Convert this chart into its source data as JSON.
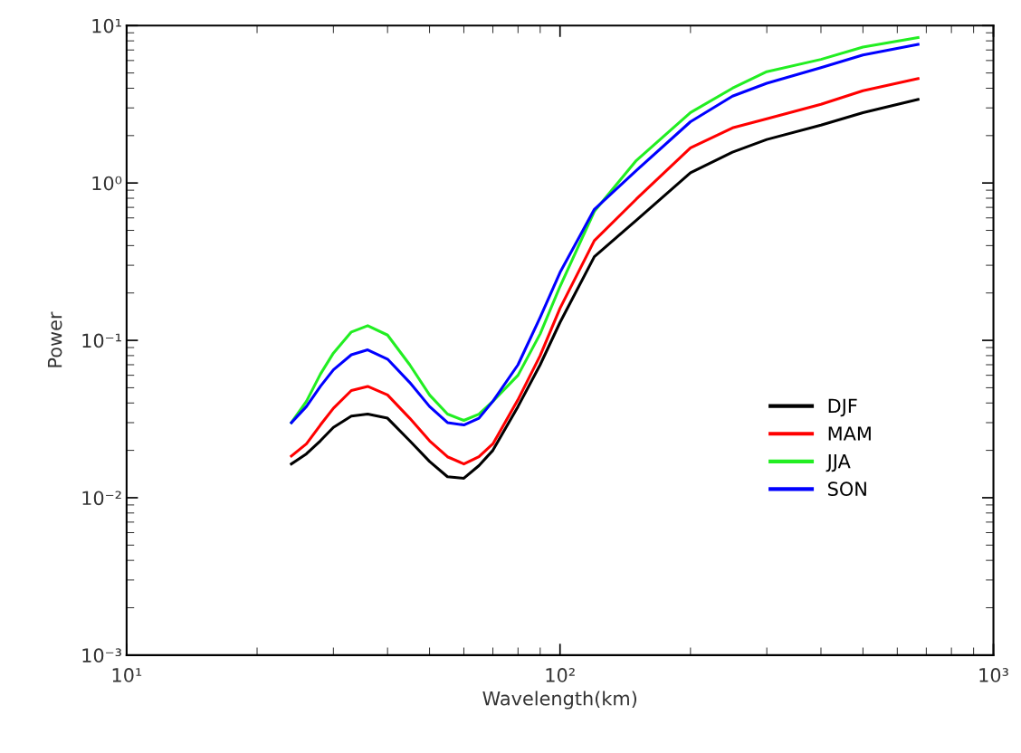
{
  "chart_data": {
    "type": "line",
    "xlabel": "Wavelength(km)",
    "ylabel": "Power",
    "log": "xy",
    "grid": false,
    "legend": "bottom right",
    "marker": "none",
    "line_style": "solid",
    "xlim": [
      10,
      1000
    ],
    "xticks": [
      {
        "value": 10,
        "label": "10¹"
      },
      {
        "value": 100,
        "label": "10²"
      },
      {
        "value": 1000,
        "label": "10³"
      }
    ],
    "ylim": [
      0.001,
      10
    ],
    "yticks": [
      {
        "value": 0.001,
        "label": "10⁻³"
      },
      {
        "value": 0.01,
        "label": "10⁻²"
      },
      {
        "value": 0.1,
        "label": "10⁻¹"
      },
      {
        "value": 1,
        "label": "10⁰"
      },
      {
        "value": 10,
        "label": "10¹"
      }
    ],
    "x": [
      24,
      26,
      28,
      30,
      33,
      36,
      40,
      45,
      50,
      55,
      60,
      65,
      70,
      80,
      90,
      100,
      120,
      150,
      200,
      250,
      300,
      400,
      500,
      670
    ],
    "series": [
      {
        "name": "DJF",
        "color": "#000000",
        "values": [
          0.0164,
          0.019,
          0.023,
          0.028,
          0.033,
          0.034,
          0.032,
          0.023,
          0.017,
          0.0136,
          0.0133,
          0.016,
          0.02,
          0.038,
          0.07,
          0.13,
          0.34,
          0.58,
          1.16,
          1.57,
          1.89,
          2.33,
          2.8,
          3.4
        ]
      },
      {
        "name": "MAM",
        "color": "#ff0000",
        "values": [
          0.0184,
          0.022,
          0.029,
          0.037,
          0.048,
          0.051,
          0.045,
          0.032,
          0.023,
          0.0182,
          0.0164,
          0.0182,
          0.022,
          0.042,
          0.08,
          0.16,
          0.43,
          0.79,
          1.67,
          2.24,
          2.56,
          3.16,
          3.86,
          4.6
        ]
      },
      {
        "name": "JJA",
        "color": "#22ee22",
        "values": [
          0.03,
          0.041,
          0.061,
          0.083,
          0.113,
          0.124,
          0.108,
          0.07,
          0.045,
          0.034,
          0.031,
          0.034,
          0.041,
          0.06,
          0.11,
          0.22,
          0.66,
          1.39,
          2.8,
          4.0,
          5.1,
          6.1,
          7.3,
          8.4
        ]
      },
      {
        "name": "SON",
        "color": "#0000ff",
        "values": [
          0.03,
          0.038,
          0.051,
          0.065,
          0.081,
          0.087,
          0.076,
          0.054,
          0.038,
          0.03,
          0.029,
          0.032,
          0.041,
          0.07,
          0.14,
          0.27,
          0.68,
          1.2,
          2.45,
          3.56,
          4.3,
          5.4,
          6.5,
          7.6
        ]
      }
    ]
  }
}
